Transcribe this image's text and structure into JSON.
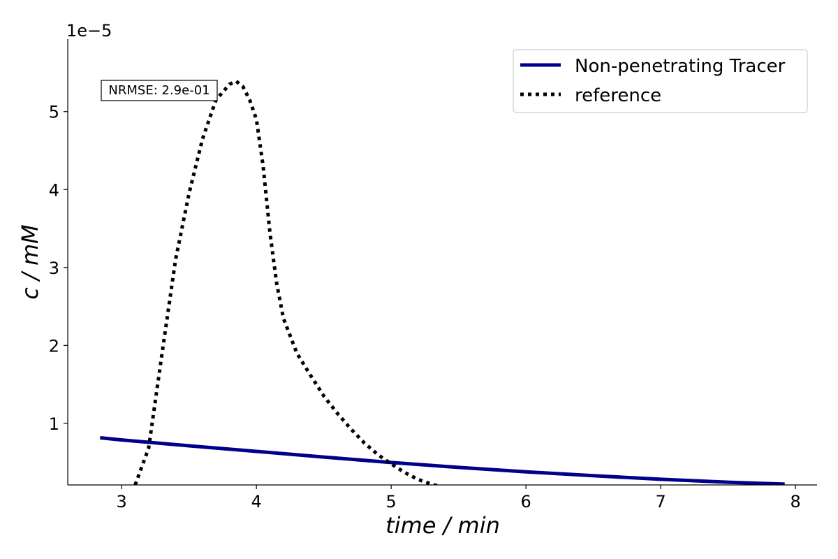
{
  "chart_data": {
    "type": "line",
    "xlabel": "time / min",
    "ylabel": "c / mM",
    "y_offset_label": "1e−5",
    "xlim": [
      2.6,
      8.16
    ],
    "ylim": [
      2.1e-06,
      5.93e-05
    ],
    "x_ticks": [
      3,
      4,
      5,
      6,
      7,
      8
    ],
    "y_ticks": [
      1e-05,
      2e-05,
      3e-05,
      4e-05,
      5e-05
    ],
    "x_tick_labels": [
      "3",
      "4",
      "5",
      "6",
      "7",
      "8"
    ],
    "y_tick_labels": [
      "1",
      "2",
      "3",
      "4",
      "5"
    ],
    "grid": false,
    "legend_position": "top-right",
    "annotation": "NRMSE: 2.9e-01",
    "series": [
      {
        "name": "Non-penetrating Tracer",
        "style": "solid",
        "color": "#00008b",
        "x": [
          2.84,
          3.0,
          3.5,
          4.0,
          4.5,
          5.0,
          5.5,
          6.0,
          6.5,
          7.0,
          7.5,
          7.92
        ],
        "y": [
          8.15e-06,
          7.87e-06,
          7.12e-06,
          6.4e-06,
          5.68e-06,
          4.98e-06,
          4.35e-06,
          3.78e-06,
          3.28e-06,
          2.83e-06,
          2.45e-06,
          2.2e-06
        ]
      },
      {
        "name": "reference",
        "style": "dotted",
        "color": "#000000",
        "x": [
          3.1,
          3.2,
          3.3,
          3.4,
          3.5,
          3.6,
          3.7,
          3.8,
          3.85,
          3.9,
          3.95,
          4.0,
          4.05,
          4.1,
          4.15,
          4.2,
          4.3,
          4.4,
          4.5,
          4.6,
          4.7,
          4.8,
          4.9,
          5.0,
          5.1,
          5.2,
          5.3,
          5.36
        ],
        "y": [
          2.1e-06,
          6.8e-06,
          1.9e-05,
          3.1e-05,
          3.95e-05,
          4.65e-05,
          5.15e-05,
          5.35e-05,
          5.39e-05,
          5.32e-05,
          5.15e-05,
          4.9e-05,
          4.3e-05,
          3.45e-05,
          2.8e-05,
          2.35e-05,
          1.9e-05,
          1.62e-05,
          1.35e-05,
          1.13e-05,
          9.3e-06,
          7.5e-06,
          6e-06,
          4.8e-06,
          3.7e-06,
          2.8e-06,
          2.2e-06,
          1.9e-06
        ]
      }
    ]
  }
}
